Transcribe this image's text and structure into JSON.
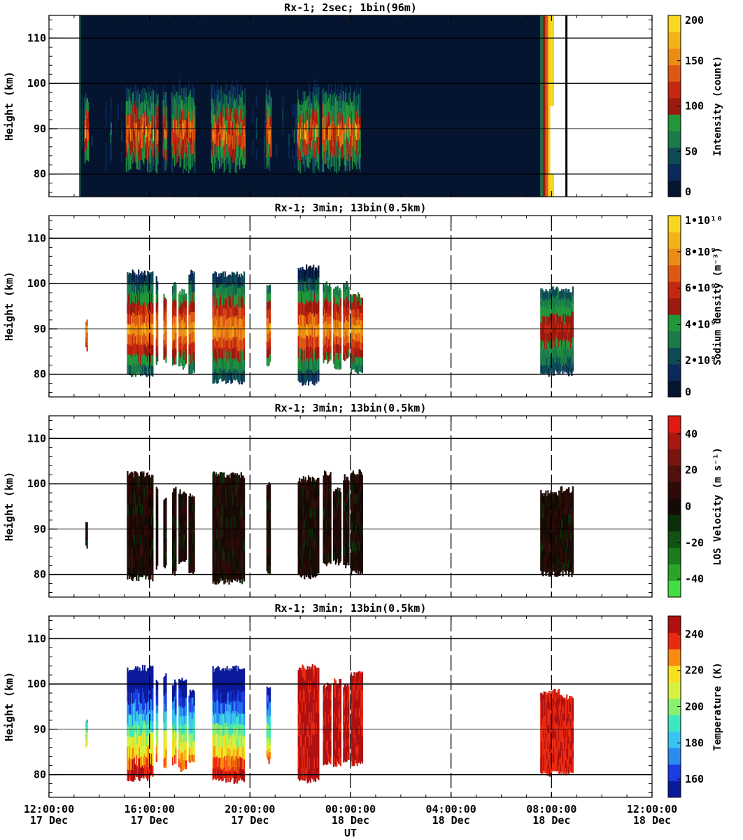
{
  "chart_data": {
    "type": "heatmap",
    "x_axis": {
      "label": "UT",
      "range_hours": [
        12,
        36
      ],
      "tick_hours": [
        12,
        16,
        20,
        24,
        28,
        32,
        36
      ],
      "tick_labels": [
        {
          "time": "12:00:00",
          "date": "17 Dec"
        },
        {
          "time": "16:00:00",
          "date": "17 Dec"
        },
        {
          "time": "20:00:00",
          "date": "17 Dec"
        },
        {
          "time": "00:00:00",
          "date": "18 Dec"
        },
        {
          "time": "04:00:00",
          "date": "18 Dec"
        },
        {
          "time": "08:00:00",
          "date": "18 Dec"
        },
        {
          "time": "12:00:00",
          "date": "18 Dec"
        }
      ]
    },
    "panels": [
      {
        "title": "Rx-1;  2sec; 1bin(96m)",
        "ylabel": "Height (km)",
        "ylim": [
          75,
          115
        ],
        "yticks": [
          80,
          90,
          100,
          110
        ],
        "colorbar": {
          "label": "Intensity (count)",
          "range": [
            0,
            200
          ],
          "ticks": [
            {
              "v": 0,
              "t": "0"
            },
            {
              "v": 50,
              "t": "50"
            },
            {
              "v": 100,
              "t": "100"
            },
            {
              "v": 150,
              "t": "150"
            },
            {
              "v": 200,
              "t": "200"
            }
          ],
          "colors": [
            "#051530",
            "#0b2a5a",
            "#0e4a55",
            "#1a7a4a",
            "#22963a",
            "#9a1a10",
            "#c42810",
            "#dd5812",
            "#ea8c16",
            "#f2b21a",
            "#f8d622"
          ]
        },
        "vdashes": [],
        "data_time_range": [
          13.2,
          32.1
        ]
      },
      {
        "title": "Rx-1; 3min; 13bin(0.5km)",
        "ylabel": "Height (km)",
        "ylim": [
          75,
          115
        ],
        "yticks": [
          80,
          90,
          100,
          110
        ],
        "colorbar": {
          "label": "Sodium density (m⁻³)",
          "range": [
            0,
            10000000000
          ],
          "ticks": [
            {
              "v": 0,
              "t": "0"
            },
            {
              "v": 2000000000,
              "t": "2•10⁹"
            },
            {
              "v": 4000000000,
              "t": "4•10⁹"
            },
            {
              "v": 6000000000,
              "t": "6•10⁹"
            },
            {
              "v": 8000000000,
              "t": "8•10⁹"
            },
            {
              "v": 10000000000,
              "t": "1•10¹⁰"
            }
          ],
          "colors": [
            "#051530",
            "#0b2a5a",
            "#0e4a55",
            "#1a7a4a",
            "#22963a",
            "#9a1a10",
            "#c42810",
            "#dd5812",
            "#ea8c16",
            "#f2b21a",
            "#f8d622"
          ]
        },
        "vdashes": [
          16,
          20,
          24,
          28,
          32
        ]
      },
      {
        "title": "Rx-1; 3min; 13bin(0.5km)",
        "ylabel": "Height (km)",
        "ylim": [
          75,
          115
        ],
        "yticks": [
          80,
          90,
          100,
          110
        ],
        "colorbar": {
          "label": "LOS Velocity (m s⁻¹)",
          "range": [
            -50,
            50
          ],
          "ticks": [
            {
              "v": -40,
              "t": "-40"
            },
            {
              "v": -20,
              "t": "-20"
            },
            {
              "v": 0,
              "t": "0"
            },
            {
              "v": 20,
              "t": "20"
            },
            {
              "v": 40,
              "t": "40"
            }
          ],
          "colors": [
            "#44dd44",
            "#2aa52a",
            "#1b7a1b",
            "#125212",
            "#0a300a",
            "#150a05",
            "#2e0a08",
            "#52100c",
            "#7a140e",
            "#a81810",
            "#e01a10"
          ]
        },
        "vdashes": [
          16,
          20,
          24,
          28,
          32
        ]
      },
      {
        "title": "Rx-1; 3min; 13bin(0.5km)",
        "ylabel": "Height (km)",
        "ylim": [
          75,
          115
        ],
        "yticks": [
          80,
          90,
          100,
          110
        ],
        "colorbar": {
          "label": "Temperature (K)",
          "range": [
            150,
            250
          ],
          "ticks": [
            {
              "v": 160,
              "t": "160"
            },
            {
              "v": 180,
              "t": "180"
            },
            {
              "v": 200,
              "t": "200"
            },
            {
              "v": 220,
              "t": "220"
            },
            {
              "v": 240,
              "t": "240"
            }
          ],
          "colors": [
            "#0a1a9a",
            "#1a3ce0",
            "#2a8cf0",
            "#38c4f0",
            "#3ce8c0",
            "#8af070",
            "#d8f040",
            "#f8e020",
            "#f88a10",
            "#ea2a10",
            "#b01010"
          ]
        },
        "vdashes": [
          16,
          20,
          24,
          28,
          32
        ]
      }
    ],
    "observation_blocks_hours": [
      [
        13.45,
        13.5
      ],
      [
        15.1,
        16.1
      ],
      [
        16.25,
        16.3
      ],
      [
        16.55,
        16.65
      ],
      [
        16.9,
        17.05
      ],
      [
        17.15,
        17.45
      ],
      [
        17.55,
        17.75
      ],
      [
        18.5,
        19.75
      ],
      [
        20.65,
        20.8
      ],
      [
        21.9,
        22.7
      ],
      [
        22.9,
        23.2
      ],
      [
        23.3,
        23.6
      ],
      [
        23.7,
        23.9
      ],
      [
        24.0,
        24.45
      ],
      [
        31.55,
        32.3
      ],
      [
        32.3,
        32.85
      ]
    ]
  }
}
